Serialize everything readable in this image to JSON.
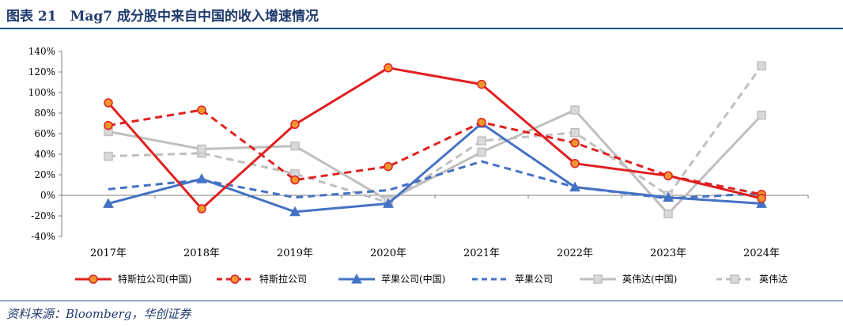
{
  "header": {
    "title": "图表 21　Mag7 成分股中来自中国的收入增速情况"
  },
  "footer": {
    "source": "资料来源：Bloomberg，华创证券"
  },
  "chart_data": {
    "type": "line",
    "categories": [
      "2017年",
      "2018年",
      "2019年",
      "2020年",
      "2021年",
      "2022年",
      "2023年",
      "2024年"
    ],
    "ylim": [
      -40,
      140
    ],
    "yticks": [
      -40,
      -20,
      0,
      20,
      40,
      60,
      80,
      100,
      120,
      140
    ],
    "ytick_labels": [
      "-40%",
      "-20%",
      "0%",
      "20%",
      "40%",
      "60%",
      "80%",
      "100%",
      "120%",
      "140%"
    ],
    "y_unit": "%",
    "grid": false,
    "legend_position": "bottom",
    "series": [
      {
        "name": "特斯拉公司(中国)",
        "color": "#e02020",
        "dash": "solid",
        "marker": "circle",
        "values": [
          90,
          -13,
          69,
          124,
          108,
          31,
          19,
          -3
        ]
      },
      {
        "name": "特斯拉公司",
        "color": "#e02020",
        "dash": "dashed",
        "marker": "circle",
        "values": [
          68,
          83,
          15,
          28,
          71,
          51,
          19,
          1
        ]
      },
      {
        "name": "苹果公司(中国)",
        "color": "#4472c4",
        "dash": "solid",
        "marker": "triangle",
        "values": [
          -8,
          16,
          -16,
          -8,
          70,
          8,
          -2,
          -8
        ]
      },
      {
        "name": "苹果公司",
        "color": "#4472c4",
        "dash": "dashed",
        "marker": "none",
        "values": [
          6,
          15,
          -2,
          5,
          33,
          8,
          -3,
          2
        ]
      },
      {
        "name": "英伟达(中国)",
        "color": "#bfbfbf",
        "dash": "solid",
        "marker": "square",
        "values": [
          62,
          45,
          48,
          -5,
          42,
          83,
          -18,
          78
        ]
      },
      {
        "name": "英伟达",
        "color": "#bfbfbf",
        "dash": "dashed",
        "marker": "square",
        "values": [
          38,
          41,
          21,
          -7,
          53,
          61,
          0,
          126
        ]
      }
    ]
  }
}
